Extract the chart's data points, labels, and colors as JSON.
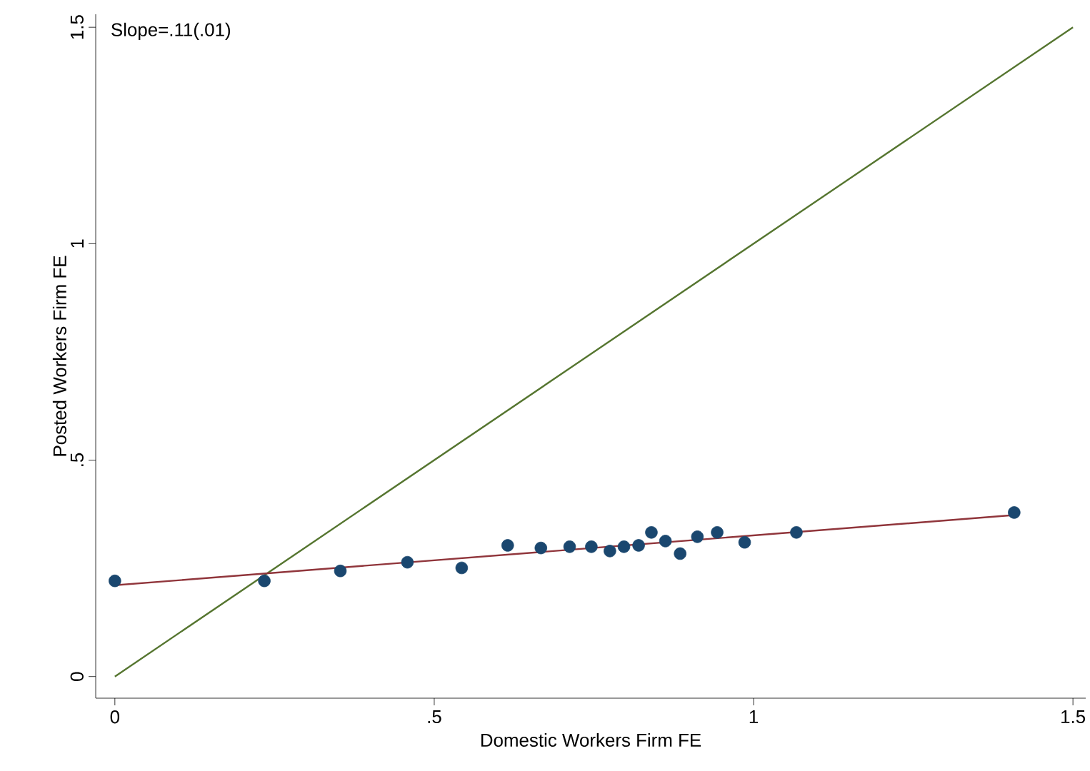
{
  "chart_data": {
    "type": "scatter",
    "xlabel": "Domestic Workers Firm FE",
    "ylabel": "Posted Workers Firm FE",
    "annotations": [
      "Slope=.11(.01)"
    ],
    "xlim": [
      -0.03,
      1.52
    ],
    "ylim": [
      -0.05,
      1.53
    ],
    "xticks": [
      {
        "value": 0,
        "label": "0"
      },
      {
        "value": 0.5,
        "label": ".5"
      },
      {
        "value": 1,
        "label": "1"
      },
      {
        "value": 1.5,
        "label": "1.5"
      }
    ],
    "yticks": [
      {
        "value": 0,
        "label": "0"
      },
      {
        "value": 0.5,
        "label": ".5"
      },
      {
        "value": 1,
        "label": "1"
      },
      {
        "value": 1.5,
        "label": "1.5"
      }
    ],
    "series": [
      {
        "type": "line",
        "marker": "none",
        "color": "#55752f",
        "x": [
          0,
          1.5
        ],
        "values": [
          0,
          1.5
        ]
      },
      {
        "type": "line",
        "marker": "none",
        "color": "#90353b",
        "x": [
          0,
          1.408
        ],
        "values": [
          0.211,
          0.373
        ]
      },
      {
        "marker": "circle",
        "color": "#1a476f",
        "x": [
          0,
          0.234,
          0.353,
          0.458,
          0.543,
          0.615,
          0.667,
          0.712,
          0.746,
          0.775,
          0.797,
          0.82,
          0.84,
          0.862,
          0.885,
          0.912,
          0.943,
          0.986,
          1.067,
          1.408
        ],
        "values": [
          0.221,
          0.221,
          0.244,
          0.264,
          0.251,
          0.303,
          0.297,
          0.3,
          0.3,
          0.29,
          0.3,
          0.303,
          0.333,
          0.313,
          0.284,
          0.323,
          0.333,
          0.31,
          0.333,
          0.379
        ]
      }
    ]
  }
}
